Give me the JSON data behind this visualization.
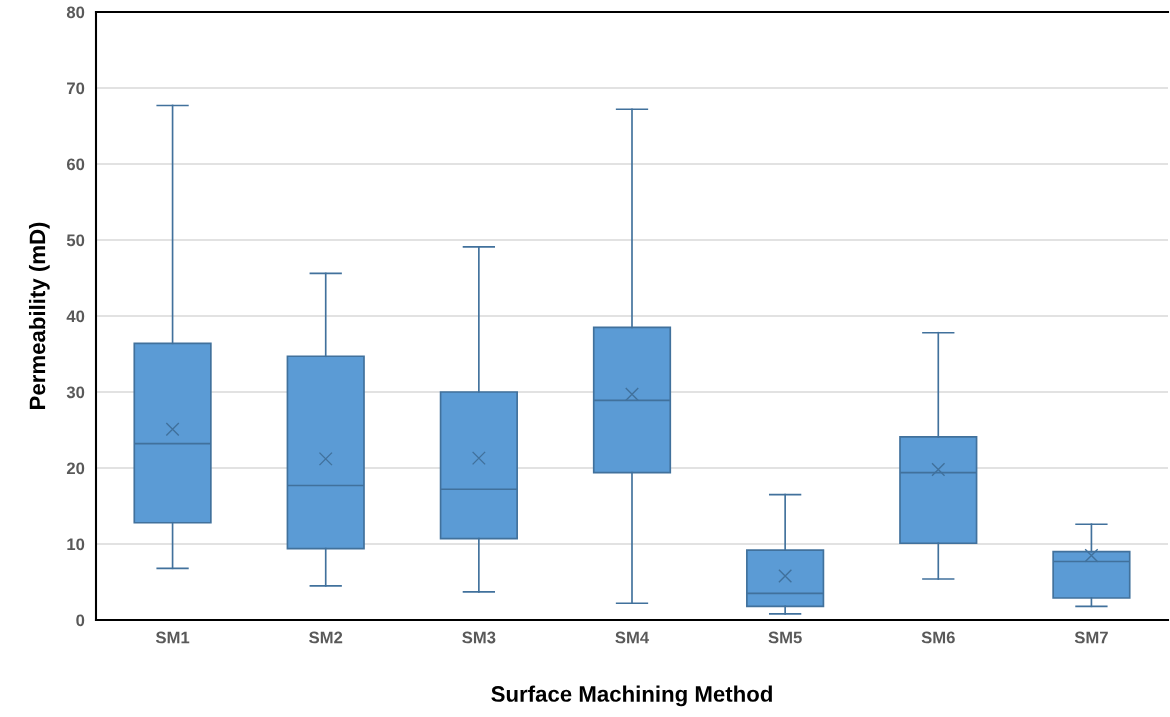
{
  "chart_data": {
    "type": "box",
    "xlabel": "Surface Machining Method",
    "ylabel": "Permeability (mD)",
    "categories": [
      "SM1",
      "SM2",
      "SM3",
      "SM4",
      "SM5",
      "SM6",
      "SM7"
    ],
    "color": "#5b9bd5",
    "boxes": [
      {
        "low": 6.8,
        "q1": 12.8,
        "median": 23.2,
        "q3": 36.4,
        "high": 67.7,
        "mean": 25.1
      },
      {
        "low": 4.5,
        "q1": 9.4,
        "median": 17.7,
        "q3": 34.7,
        "high": 45.6,
        "mean": 21.2
      },
      {
        "low": 3.7,
        "q1": 10.7,
        "median": 17.2,
        "q3": 30.0,
        "high": 49.1,
        "mean": 21.3
      },
      {
        "low": 2.2,
        "q1": 19.4,
        "median": 28.9,
        "q3": 38.5,
        "high": 67.2,
        "mean": 29.7
      },
      {
        "low": 0.8,
        "q1": 1.8,
        "median": 3.5,
        "q3": 9.2,
        "high": 16.5,
        "mean": 5.8
      },
      {
        "low": 5.4,
        "q1": 10.1,
        "median": 19.4,
        "q3": 24.1,
        "high": 37.8,
        "mean": 19.8
      },
      {
        "low": 1.8,
        "q1": 2.9,
        "median": 7.7,
        "q3": 9.0,
        "high": 12.6,
        "mean": 8.5
      }
    ],
    "ylim": [
      0,
      80
    ],
    "yticks": [
      0,
      10,
      20,
      30,
      40,
      50,
      60,
      70,
      80
    ],
    "grid": "y",
    "marker": "cross"
  }
}
